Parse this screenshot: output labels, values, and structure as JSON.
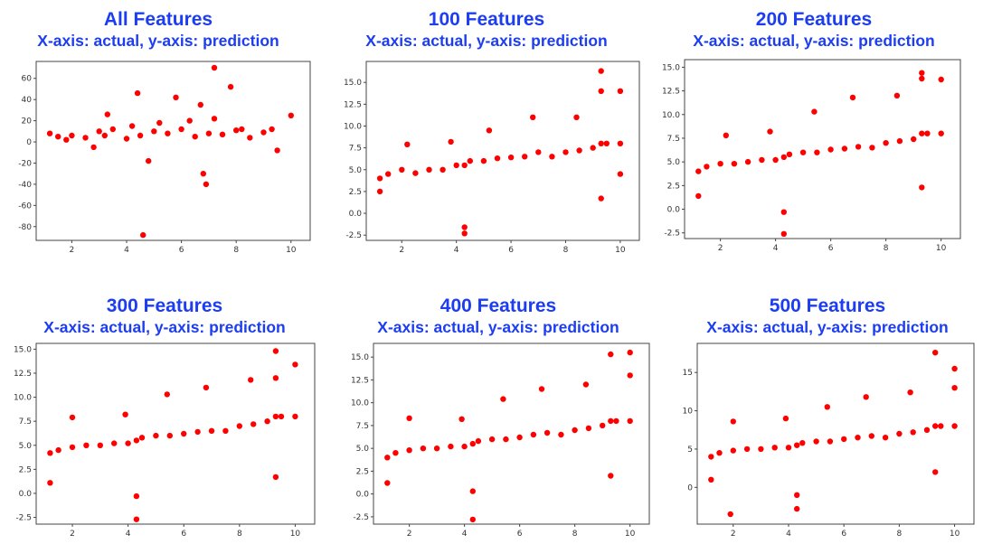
{
  "panels": [
    {
      "title": "All Features",
      "subtitle": "X-axis: actual, y-axis: prediction"
    },
    {
      "title": "100 Features",
      "subtitle": "X-axis: actual, y-axis: prediction"
    },
    {
      "title": "200 Features",
      "subtitle": "X-axis: actual, y-axis: prediction"
    },
    {
      "title": "300 Features",
      "subtitle": "X-axis: actual, y-axis: prediction"
    },
    {
      "title": "400 Features",
      "subtitle": "X-axis: actual, y-axis: prediction"
    },
    {
      "title": "500 Features",
      "subtitle": "X-axis: actual, y-axis: prediction"
    }
  ],
  "colors": {
    "heading": "#1c3df0",
    "points": "#ff0000"
  },
  "chart_data": [
    {
      "type": "scatter",
      "title": "All Features",
      "subtitle": "X-axis: actual, y-axis: prediction",
      "xlim": [
        0.7,
        10.7
      ],
      "ylim": [
        -93,
        76
      ],
      "xticks": [
        2,
        4,
        6,
        8,
        10
      ],
      "yticks": [
        -80,
        -60,
        -40,
        -20,
        0,
        20,
        40,
        60
      ],
      "grid": false,
      "series": [
        {
          "x": [
            1.2,
            1.5,
            2.0,
            2.5,
            3.0,
            3.5,
            4.0,
            4.5,
            5.0,
            5.5,
            6.0,
            6.5,
            7.0,
            7.5,
            8.0,
            8.5,
            9.0,
            9.3,
            10.0,
            1.8,
            3.2,
            4.2,
            5.2,
            6.3,
            7.2,
            8.2,
            2.8,
            4.8,
            6.8,
            9.5,
            7.2,
            4.6,
            6.9,
            5.8,
            7.8,
            4.4,
            3.3,
            6.7
          ],
          "y": [
            8,
            5,
            6,
            4,
            10,
            12,
            3,
            6,
            10,
            8,
            12,
            5,
            8,
            7,
            11,
            4,
            9,
            12,
            25,
            2,
            6,
            15,
            18,
            20,
            22,
            12,
            -5,
            -18,
            -30,
            -8,
            70,
            -88,
            -40,
            42,
            52,
            46,
            26,
            35
          ]
        }
      ]
    },
    {
      "type": "scatter",
      "title": "100 Features",
      "subtitle": "X-axis: actual, y-axis: prediction",
      "xlim": [
        0.7,
        10.7
      ],
      "ylim": [
        -3.1,
        17.4
      ],
      "xticks": [
        2,
        4,
        6,
        8,
        10
      ],
      "yticks": [
        -2.5,
        0.0,
        2.5,
        5.0,
        7.5,
        10.0,
        12.5,
        15.0
      ],
      "grid": false,
      "series": [
        {
          "x": [
            1.2,
            1.5,
            2.0,
            2.5,
            3.0,
            3.5,
            4.0,
            4.3,
            4.5,
            5.0,
            5.5,
            6.0,
            6.5,
            7.0,
            7.5,
            8.0,
            8.5,
            9.0,
            9.3,
            9.5,
            10.0,
            4.3,
            4.3,
            9.3,
            9.3,
            9.3,
            10.0,
            10.0,
            1.2,
            2.2,
            3.8,
            5.2,
            6.8,
            8.4
          ],
          "y": [
            4.0,
            4.5,
            5.0,
            4.6,
            5.0,
            5.0,
            5.5,
            5.5,
            6.0,
            6.0,
            6.3,
            6.4,
            6.5,
            7.0,
            6.5,
            7.0,
            7.2,
            7.5,
            8.0,
            8.0,
            8.0,
            -2.3,
            -1.6,
            16.3,
            14.0,
            1.7,
            14.0,
            4.5,
            2.5,
            7.9,
            8.2,
            9.5,
            11.0,
            11.0
          ]
        }
      ]
    },
    {
      "type": "scatter",
      "title": "200 Features",
      "subtitle": "X-axis: actual, y-axis: prediction",
      "xlim": [
        0.7,
        10.7
      ],
      "ylim": [
        -3.1,
        15.8
      ],
      "xticks": [
        2,
        4,
        6,
        8,
        10
      ],
      "yticks": [
        -2.5,
        0.0,
        2.5,
        5.0,
        7.5,
        10.0,
        12.5,
        15.0
      ],
      "grid": false,
      "series": [
        {
          "x": [
            1.2,
            1.5,
            2.0,
            2.5,
            3.0,
            3.5,
            4.0,
            4.3,
            4.5,
            5.0,
            5.5,
            6.0,
            6.5,
            7.0,
            7.5,
            8.0,
            8.5,
            9.0,
            9.3,
            9.5,
            10.0,
            4.3,
            4.3,
            9.3,
            9.3,
            9.3,
            10.0,
            1.2,
            2.2,
            3.8,
            5.4,
            6.8,
            8.4
          ],
          "y": [
            4.0,
            4.5,
            4.8,
            4.8,
            5.0,
            5.2,
            5.2,
            5.5,
            5.8,
            6.0,
            6.0,
            6.3,
            6.4,
            6.6,
            6.5,
            7.0,
            7.2,
            7.4,
            8.0,
            8.0,
            8.0,
            -2.6,
            -0.3,
            14.4,
            13.8,
            2.3,
            13.7,
            1.4,
            7.8,
            8.2,
            10.3,
            11.8,
            12.0
          ]
        }
      ]
    },
    {
      "type": "scatter",
      "title": "300 Features",
      "subtitle": "X-axis: actual, y-axis: prediction",
      "xlim": [
        0.7,
        10.7
      ],
      "ylim": [
        -3.2,
        15.6
      ],
      "xticks": [
        2,
        4,
        6,
        8,
        10
      ],
      "yticks": [
        -2.5,
        0.0,
        2.5,
        5.0,
        7.5,
        10.0,
        12.5,
        15.0
      ],
      "grid": false,
      "series": [
        {
          "x": [
            1.2,
            1.5,
            2.0,
            2.5,
            3.0,
            3.5,
            4.0,
            4.3,
            4.5,
            5.0,
            5.5,
            6.0,
            6.5,
            7.0,
            7.5,
            8.0,
            8.5,
            9.0,
            9.3,
            9.5,
            10.0,
            4.3,
            4.3,
            9.3,
            9.3,
            9.3,
            10.0,
            1.2,
            2.0,
            3.9,
            5.4,
            6.8,
            8.4
          ],
          "y": [
            4.2,
            4.5,
            4.8,
            5.0,
            5.0,
            5.2,
            5.2,
            5.5,
            5.8,
            6.0,
            6.0,
            6.2,
            6.4,
            6.5,
            6.5,
            7.0,
            7.2,
            7.5,
            8.0,
            8.0,
            8.0,
            -2.7,
            -0.3,
            14.8,
            12.0,
            1.7,
            13.4,
            1.1,
            7.9,
            8.2,
            10.3,
            11.0,
            11.8
          ]
        }
      ]
    },
    {
      "type": "scatter",
      "title": "400 Features",
      "subtitle": "X-axis: actual, y-axis: prediction",
      "xlim": [
        0.7,
        10.7
      ],
      "ylim": [
        -3.3,
        16.5
      ],
      "xticks": [
        2,
        4,
        6,
        8,
        10
      ],
      "yticks": [
        -2.5,
        0.0,
        2.5,
        5.0,
        7.5,
        10.0,
        12.5,
        15.0
      ],
      "grid": false,
      "series": [
        {
          "x": [
            1.2,
            1.5,
            2.0,
            2.5,
            3.0,
            3.5,
            4.0,
            4.3,
            4.5,
            5.0,
            5.5,
            6.0,
            6.5,
            7.0,
            7.5,
            8.0,
            8.5,
            9.0,
            9.3,
            9.5,
            10.0,
            4.3,
            4.3,
            9.3,
            9.3,
            10.0,
            10.0,
            1.2,
            2.0,
            3.9,
            5.4,
            6.8,
            8.4
          ],
          "y": [
            4.0,
            4.5,
            4.8,
            5.0,
            5.0,
            5.2,
            5.2,
            5.5,
            5.8,
            6.0,
            6.0,
            6.2,
            6.5,
            6.7,
            6.5,
            7.0,
            7.2,
            7.5,
            8.0,
            8.0,
            8.0,
            -2.8,
            0.3,
            15.3,
            2.0,
            15.5,
            13.0,
            1.2,
            8.3,
            8.2,
            10.4,
            11.5,
            12.0
          ]
        }
      ]
    },
    {
      "type": "scatter",
      "title": "500 Features",
      "subtitle": "X-axis: actual, y-axis: prediction",
      "xlim": [
        0.7,
        10.7
      ],
      "ylim": [
        -4.8,
        18.8
      ],
      "xticks": [
        2,
        4,
        6,
        8,
        10
      ],
      "yticks": [
        0,
        5,
        10,
        15
      ],
      "grid": false,
      "series": [
        {
          "x": [
            1.2,
            1.5,
            2.0,
            2.5,
            3.0,
            3.5,
            4.0,
            4.3,
            4.5,
            5.0,
            5.5,
            6.0,
            6.5,
            7.0,
            7.5,
            8.0,
            8.5,
            9.0,
            9.3,
            9.5,
            10.0,
            4.3,
            4.3,
            1.9,
            9.3,
            9.3,
            10.0,
            10.0,
            1.2,
            2.0,
            3.9,
            5.4,
            6.8,
            8.4
          ],
          "y": [
            4.0,
            4.5,
            4.8,
            5.0,
            5.0,
            5.2,
            5.2,
            5.5,
            5.8,
            6.0,
            6.0,
            6.3,
            6.5,
            6.7,
            6.5,
            7.0,
            7.2,
            7.5,
            8.0,
            8.0,
            8.0,
            -2.8,
            -1.0,
            -3.5,
            17.6,
            2.0,
            15.5,
            13.0,
            1.0,
            8.6,
            9.0,
            10.5,
            11.8,
            12.4
          ]
        }
      ]
    }
  ]
}
